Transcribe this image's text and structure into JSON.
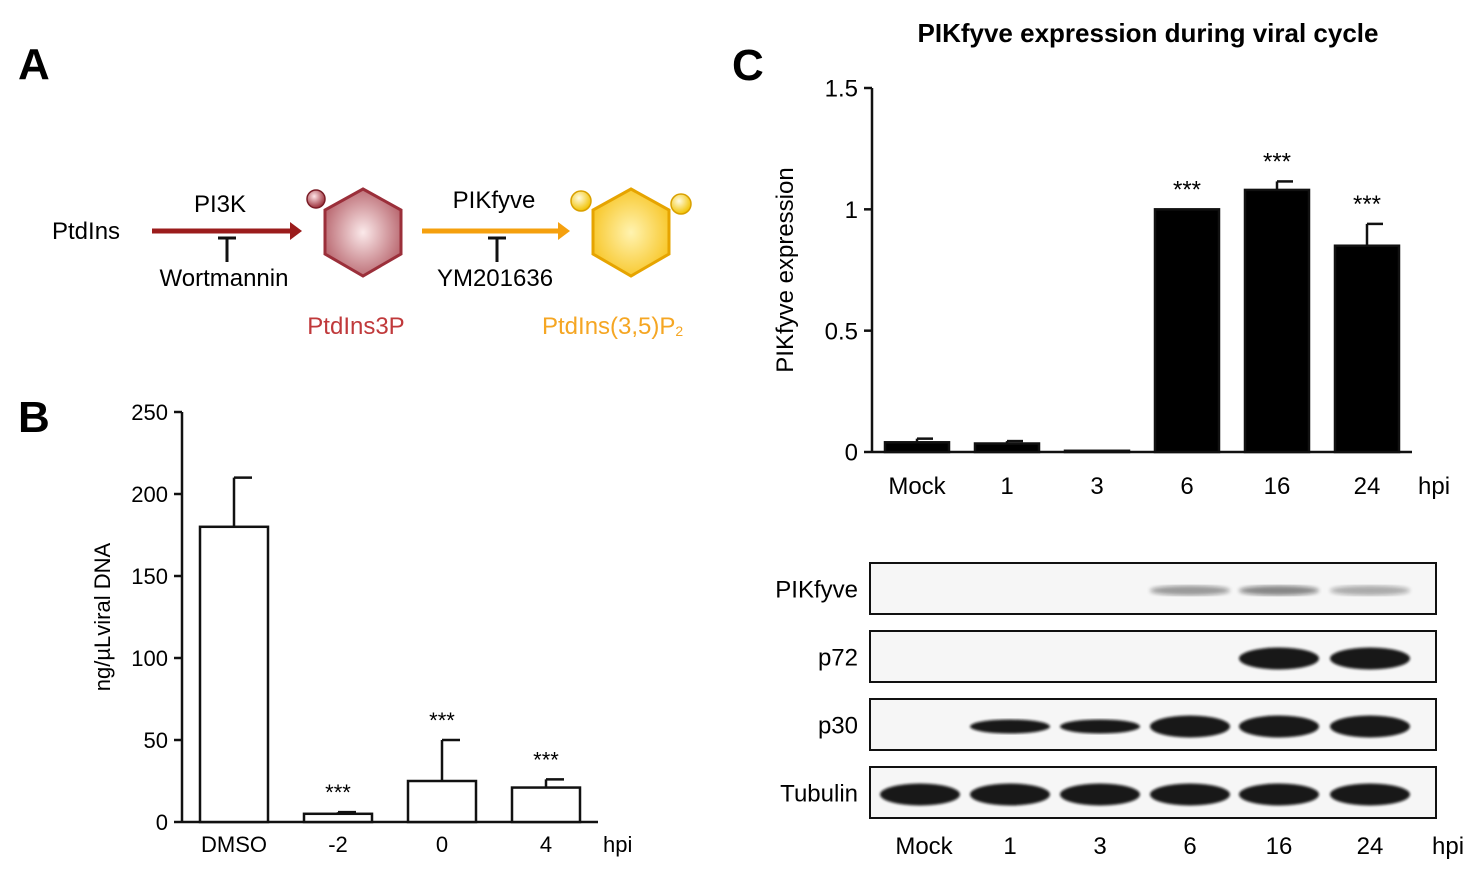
{
  "panel_labels": {
    "a": "A",
    "b": "B",
    "c": "C"
  },
  "pathway": {
    "substrate": "PtdIns",
    "enzyme1": "PI3K",
    "inhibitor1": "Wortmannin",
    "product1": "PtdIns3P",
    "enzyme2": "PIKfyve",
    "inhibitor2": "YM201636",
    "product2_main": "PtdIns(3,5)P",
    "product2_sub": "2",
    "colors": {
      "step1": "#9b1c1c",
      "step2": "#f5a00e",
      "product1_text": "#c0393b",
      "product2_text": "#f5a623",
      "hex1": "#a83a45",
      "hex2": "#f7c21b"
    }
  },
  "chart_data": [
    {
      "id": "B",
      "type": "bar",
      "title": "",
      "categories": [
        "DMSO",
        "-2",
        "0",
        "4"
      ],
      "values": [
        180,
        5,
        25,
        21
      ],
      "errors": [
        30,
        1,
        25,
        5
      ],
      "significance": [
        "",
        "***",
        "***",
        "***"
      ],
      "xlabel": "hpi",
      "ylabel": "ng/µLviral DNA",
      "ylim": [
        0,
        250
      ],
      "yticks": [
        "0",
        "50",
        "100",
        "150",
        "200",
        "250"
      ],
      "bar_fill": "#ffffff"
    },
    {
      "id": "C",
      "type": "bar",
      "title": "PIKfyve expression during viral cycle",
      "categories": [
        "Mock",
        "1",
        "3",
        "6",
        "16",
        "24"
      ],
      "values": [
        0.04,
        0.035,
        0.005,
        1.0,
        1.08,
        0.85
      ],
      "errors": [
        0.015,
        0.01,
        0.0,
        0.0,
        0.035,
        0.09
      ],
      "significance": [
        "",
        "",
        "",
        "***",
        "***",
        "***"
      ],
      "xlabel": "hpi",
      "ylabel": "PIKfyve expression",
      "ylim": [
        0,
        1.5
      ],
      "yticks": [
        "0",
        "0.5",
        "1",
        "1.5"
      ],
      "bar_fill": "#000000"
    }
  ],
  "blot": {
    "rows": [
      "PIKfyve",
      "p72",
      "p30",
      "Tubulin"
    ],
    "lanes": [
      "Mock",
      "1",
      "3",
      "6",
      "16",
      "24"
    ],
    "xlabel": "hpi",
    "intensities": [
      [
        0,
        0,
        0,
        0.25,
        0.3,
        0.2
      ],
      [
        0,
        0,
        0,
        0,
        1,
        1
      ],
      [
        0,
        0.75,
        0.8,
        1,
        1,
        1
      ],
      [
        1,
        1,
        1,
        1,
        1,
        1
      ]
    ]
  }
}
